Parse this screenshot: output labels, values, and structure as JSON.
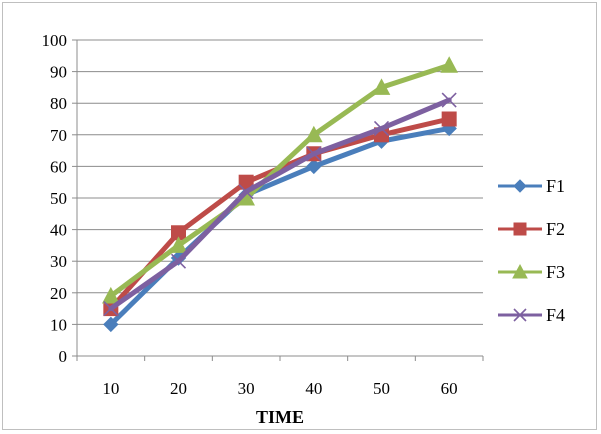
{
  "chart_data": {
    "type": "line",
    "title": "",
    "xlabel": "TIME",
    "ylabel": "",
    "categories": [
      "10",
      "20",
      "30",
      "40",
      "50",
      "60"
    ],
    "ylim": [
      0,
      100
    ],
    "yticks": [
      "0",
      "10",
      "20",
      "30",
      "40",
      "50",
      "60",
      "70",
      "80",
      "90",
      "100"
    ],
    "grid": "horizontal",
    "legend_position": "right",
    "series": [
      {
        "name": "F1",
        "color": "#4a7ebb",
        "marker": "diamond",
        "values": [
          10,
          31,
          51,
          60,
          68,
          72
        ]
      },
      {
        "name": "F2",
        "color": "#be4b48",
        "marker": "square",
        "values": [
          15,
          39,
          55,
          64,
          70,
          75
        ]
      },
      {
        "name": "F3",
        "color": "#98b954",
        "marker": "triangle",
        "values": [
          19,
          35,
          50,
          70,
          85,
          92
        ]
      },
      {
        "name": "F4",
        "color": "#7d60a0",
        "marker": "x",
        "values": [
          15,
          30,
          52,
          64,
          72,
          81
        ]
      }
    ]
  }
}
